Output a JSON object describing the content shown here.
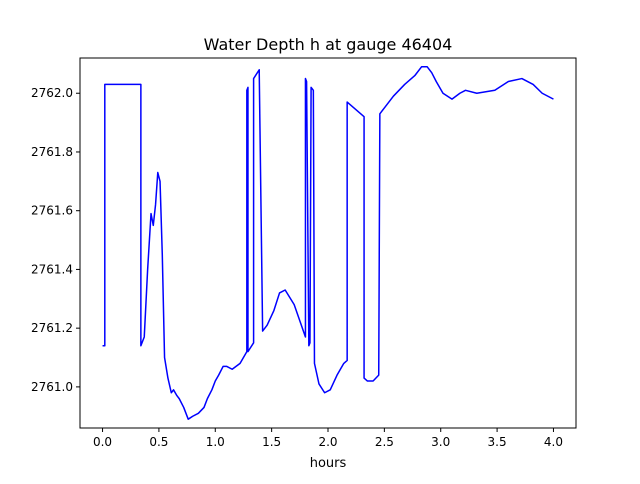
{
  "chart_data": {
    "type": "line",
    "title": "Water Depth h at gauge 46404",
    "xlabel": "hours",
    "ylabel": "",
    "xlim": [
      -0.2,
      4.2
    ],
    "ylim": [
      2760.86,
      2762.12
    ],
    "xticks": [
      0.0,
      0.5,
      1.0,
      1.5,
      2.0,
      2.5,
      3.0,
      3.5,
      4.0
    ],
    "xtick_labels": [
      "0.0",
      "0.5",
      "1.0",
      "1.5",
      "2.0",
      "2.5",
      "3.0",
      "3.5",
      "4.0"
    ],
    "yticks": [
      2761.0,
      2761.2,
      2761.4,
      2761.6,
      2761.8,
      2762.0
    ],
    "ytick_labels": [
      "2761.0",
      "2761.2",
      "2761.4",
      "2761.6",
      "2761.8",
      "2762.0"
    ],
    "grid": false,
    "series": [
      {
        "color": "#0000ff",
        "x": [
          0.0,
          0.02,
          0.02,
          0.34,
          0.34,
          0.37,
          0.4,
          0.43,
          0.45,
          0.47,
          0.49,
          0.51,
          0.53,
          0.55,
          0.58,
          0.61,
          0.63,
          0.66,
          0.68,
          0.72,
          0.76,
          0.8,
          0.85,
          0.9,
          0.93,
          0.97,
          1.0,
          1.03,
          1.07,
          1.1,
          1.15,
          1.22,
          1.28,
          1.28,
          1.29,
          1.29,
          1.34,
          1.34,
          1.39,
          1.39,
          1.42,
          1.46,
          1.52,
          1.57,
          1.62,
          1.7,
          1.8,
          1.8,
          1.81,
          1.83,
          1.84,
          1.85,
          1.87,
          1.88,
          1.92,
          1.97,
          2.02,
          2.08,
          2.14,
          2.17,
          2.17,
          2.32,
          2.32,
          2.35,
          2.4,
          2.45,
          2.46,
          2.5,
          2.58,
          2.68,
          2.77,
          2.83,
          2.88,
          2.92,
          2.96,
          3.02,
          3.1,
          3.17,
          3.22,
          3.32,
          3.48,
          3.6,
          3.72,
          3.82,
          3.9,
          4.0
        ],
        "y": [
          2761.14,
          2761.14,
          2762.03,
          2762.03,
          2761.14,
          2761.17,
          2761.4,
          2761.59,
          2761.55,
          2761.62,
          2761.73,
          2761.7,
          2761.45,
          2761.1,
          2761.03,
          2760.98,
          2760.99,
          2760.97,
          2760.96,
          2760.93,
          2760.89,
          2760.9,
          2760.91,
          2760.93,
          2760.96,
          2760.99,
          2761.02,
          2761.04,
          2761.07,
          2761.07,
          2761.06,
          2761.08,
          2761.12,
          2762.01,
          2762.02,
          2761.12,
          2761.15,
          2762.05,
          2762.08,
          2762.07,
          2761.19,
          2761.21,
          2761.26,
          2761.32,
          2761.33,
          2761.28,
          2761.17,
          2762.05,
          2762.04,
          2761.14,
          2761.15,
          2762.02,
          2762.01,
          2761.08,
          2761.01,
          2760.98,
          2760.99,
          2761.04,
          2761.08,
          2761.09,
          2761.97,
          2761.92,
          2761.03,
          2761.02,
          2761.02,
          2761.04,
          2761.93,
          2761.95,
          2761.99,
          2762.03,
          2762.06,
          2762.09,
          2762.09,
          2762.07,
          2762.04,
          2762.0,
          2761.98,
          2762.0,
          2762.01,
          2762.0,
          2762.01,
          2762.04,
          2762.05,
          2762.03,
          2762.0,
          2761.98
        ]
      }
    ]
  }
}
